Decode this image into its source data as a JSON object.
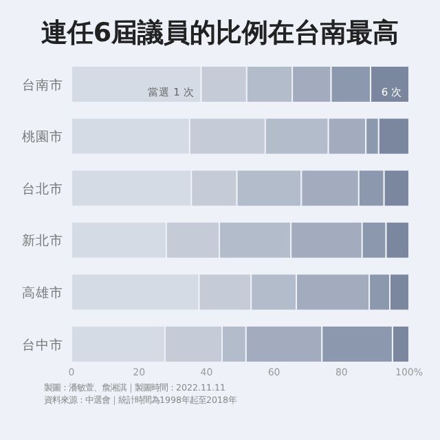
{
  "chart_data": {
    "type": "bar",
    "orientation": "horizontal",
    "stacked": true,
    "title": "連任6屆議員的比例在台南最高",
    "categories": [
      "台南市",
      "桃園市",
      "台北市",
      "新北市",
      "高雄市",
      "台中市"
    ],
    "series": [
      {
        "name": "當選 1 次",
        "color": "#d5dbe5",
        "values": [
          38.4,
          35.0,
          35.5,
          28.1,
          37.8,
          27.7
        ]
      },
      {
        "color": "#c5ccd8",
        "values": [
          13.5,
          22.4,
          13.5,
          15.7,
          15.4,
          16.9
        ]
      },
      {
        "color": "#b3bccb",
        "values": [
          13.5,
          18.7,
          19.1,
          21.2,
          13.4,
          7.1
        ]
      },
      {
        "color": "#a2acbe",
        "values": [
          11.5,
          11.1,
          17.0,
          21.1,
          21.6,
          22.5
        ]
      },
      {
        "color": "#8c98ae",
        "values": [
          11.7,
          3.8,
          7.5,
          7.1,
          6.1,
          20.9
        ]
      },
      {
        "name": "6 次",
        "color": "#7a879f",
        "values": [
          11.4,
          9.0,
          7.4,
          6.8,
          5.7,
          4.9
        ]
      }
    ],
    "xlim": [
      0,
      100
    ],
    "xticks": [
      0,
      20,
      40,
      60,
      80,
      {
        "value": 100,
        "label": "100%"
      }
    ],
    "grid": false,
    "legend": false,
    "annotations": [
      "製圖：潘敏萱、詹湘淇｜製圖時間：2022.11.11",
      "資料來源：中選會｜統計時間為1998年起至2018年"
    ]
  }
}
